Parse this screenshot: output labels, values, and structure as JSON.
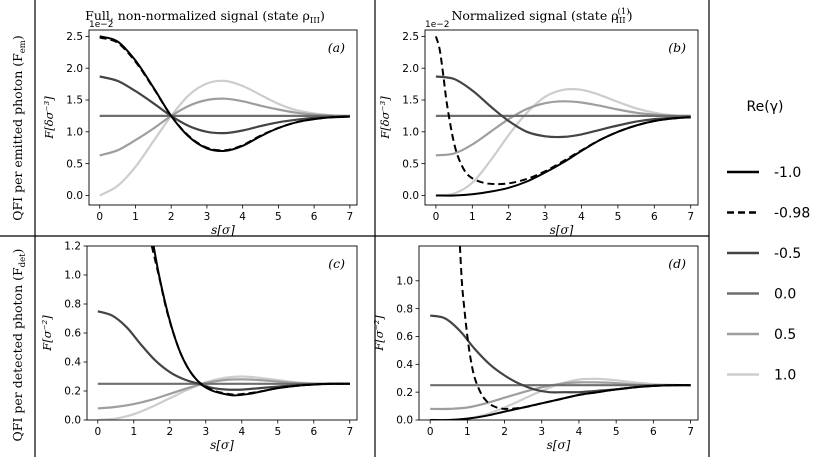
{
  "column_headers": [
    "Full, non-normalized signal (state ρ",
    "Normalized signal (state ρ"
  ],
  "column_header_subs": [
    "III",
    "III"
  ],
  "column_header_sups": [
    "",
    "(1)"
  ],
  "column_header_tail": ")",
  "row_headers": [
    "QFI per emitted photon (F",
    "QFI per detected photon (F"
  ],
  "row_header_subs": [
    "em",
    "det"
  ],
  "row_header_tail": ")",
  "legend": {
    "title": "Re(γ)",
    "entries": [
      {
        "label": "-1.0",
        "color": "#000000",
        "dash": false
      },
      {
        "label": "-0.98",
        "color": "#000000",
        "dash": true
      },
      {
        "label": "-0.5",
        "color": "#444444",
        "dash": false
      },
      {
        "label": "0.0",
        "color": "#6e6e6e",
        "dash": false
      },
      {
        "label": "0.5",
        "color": "#9e9e9e",
        "dash": false
      },
      {
        "label": "1.0",
        "color": "#cdcdcd",
        "dash": false
      }
    ]
  },
  "chart_data": [
    {
      "type": "line",
      "panel": "(a)",
      "xlabel": "s[σ]",
      "ylabel": "F[δσ⁻³]",
      "offset_text": "1e−2",
      "xlim": [
        -0.3,
        7.2
      ],
      "ylim": [
        -0.15,
        2.6
      ],
      "xticks": [
        "0",
        "1",
        "2",
        "3",
        "4",
        "5",
        "6",
        "7"
      ],
      "yticks": [
        "0.0",
        "0.5",
        "1.0",
        "1.5",
        "2.0",
        "2.5"
      ],
      "yticks_values": [
        0.0,
        0.5,
        1.0,
        1.5,
        2.0,
        2.5
      ],
      "series": [
        {
          "name": "-1.0",
          "x": [
            0,
            0.5,
            1,
            1.5,
            2,
            2.5,
            3,
            3.5,
            4,
            4.5,
            5,
            5.5,
            6,
            6.5,
            7
          ],
          "y": [
            2.5,
            2.42,
            2.12,
            1.7,
            1.25,
            0.92,
            0.74,
            0.7,
            0.78,
            0.93,
            1.06,
            1.15,
            1.2,
            1.23,
            1.24
          ]
        },
        {
          "name": "-0.98",
          "x": [
            0,
            0.5,
            1,
            1.5,
            2,
            2.5,
            3,
            3.5,
            4,
            4.5,
            5,
            5.5,
            6,
            6.5,
            7
          ],
          "y": [
            2.48,
            2.4,
            2.1,
            1.69,
            1.25,
            0.93,
            0.75,
            0.71,
            0.79,
            0.94,
            1.06,
            1.15,
            1.2,
            1.23,
            1.24
          ]
        },
        {
          "name": "-0.5",
          "x": [
            0,
            0.5,
            1,
            1.5,
            2,
            2.5,
            3,
            3.5,
            4,
            4.5,
            5,
            5.5,
            6,
            6.5,
            7
          ],
          "y": [
            1.87,
            1.8,
            1.64,
            1.45,
            1.25,
            1.09,
            1.0,
            0.98,
            1.02,
            1.09,
            1.15,
            1.19,
            1.22,
            1.23,
            1.24
          ]
        },
        {
          "name": "0.0",
          "x": [
            0,
            1,
            2,
            3,
            4,
            5,
            6,
            7
          ],
          "y": [
            1.25,
            1.25,
            1.25,
            1.25,
            1.25,
            1.25,
            1.25,
            1.25
          ]
        },
        {
          "name": "0.5",
          "x": [
            0,
            0.5,
            1,
            1.5,
            2,
            2.5,
            3,
            3.5,
            4,
            4.5,
            5,
            5.5,
            6,
            6.5,
            7
          ],
          "y": [
            0.63,
            0.71,
            0.87,
            1.05,
            1.25,
            1.41,
            1.5,
            1.52,
            1.48,
            1.41,
            1.35,
            1.3,
            1.27,
            1.25,
            1.24
          ]
        },
        {
          "name": "1.0",
          "x": [
            0,
            0.5,
            1,
            1.5,
            2,
            2.5,
            3,
            3.5,
            4,
            4.5,
            5,
            5.5,
            6,
            6.5,
            7
          ],
          "y": [
            0.0,
            0.15,
            0.45,
            0.85,
            1.25,
            1.58,
            1.76,
            1.8,
            1.72,
            1.58,
            1.44,
            1.34,
            1.29,
            1.26,
            1.24
          ]
        }
      ]
    },
    {
      "type": "line",
      "panel": "(b)",
      "xlabel": "s[σ]",
      "ylabel": "F[δσ⁻³]",
      "offset_text": "1e−2",
      "xlim": [
        -0.3,
        7.2
      ],
      "ylim": [
        -0.15,
        2.6
      ],
      "xticks": [
        "0",
        "1",
        "2",
        "3",
        "4",
        "5",
        "6",
        "7"
      ],
      "yticks": [
        "0.0",
        "0.5",
        "1.0",
        "1.5",
        "2.0",
        "2.5"
      ],
      "yticks_values": [
        0.0,
        0.5,
        1.0,
        1.5,
        2.0,
        2.5
      ],
      "series": [
        {
          "name": "-1.0",
          "x": [
            0,
            0.5,
            1,
            1.5,
            2,
            2.5,
            3,
            3.5,
            4,
            4.5,
            5,
            5.5,
            6,
            6.5,
            7
          ],
          "y": [
            0.0,
            0.0,
            0.02,
            0.06,
            0.12,
            0.22,
            0.36,
            0.52,
            0.7,
            0.87,
            1.0,
            1.1,
            1.17,
            1.21,
            1.23
          ]
        },
        {
          "name": "-0.98",
          "x": [
            0,
            0.1,
            0.2,
            0.3,
            0.45,
            0.6,
            0.8,
            1.0,
            1.3,
            1.6,
            2.0,
            2.5,
            3,
            3.5,
            4,
            4.5,
            5,
            5.5,
            6,
            6.5,
            7
          ],
          "y": [
            2.5,
            2.3,
            1.9,
            1.45,
            0.95,
            0.62,
            0.38,
            0.27,
            0.2,
            0.18,
            0.19,
            0.26,
            0.38,
            0.54,
            0.71,
            0.87,
            1.0,
            1.1,
            1.17,
            1.21,
            1.23
          ]
        },
        {
          "name": "-0.5",
          "x": [
            0,
            0.5,
            1,
            1.5,
            2,
            2.5,
            3,
            3.5,
            4,
            4.5,
            5,
            5.5,
            6,
            6.5,
            7
          ],
          "y": [
            1.87,
            1.83,
            1.65,
            1.4,
            1.17,
            1.0,
            0.93,
            0.92,
            0.96,
            1.03,
            1.1,
            1.16,
            1.2,
            1.22,
            1.23
          ]
        },
        {
          "name": "0.0",
          "x": [
            0,
            1,
            2,
            3,
            4,
            5,
            6,
            7
          ],
          "y": [
            1.25,
            1.25,
            1.25,
            1.25,
            1.25,
            1.25,
            1.25,
            1.25
          ]
        },
        {
          "name": "0.5",
          "x": [
            0,
            0.5,
            1,
            1.5,
            2,
            2.5,
            3,
            3.5,
            4,
            4.5,
            5,
            5.5,
            6,
            6.5,
            7
          ],
          "y": [
            0.63,
            0.66,
            0.8,
            1.0,
            1.2,
            1.36,
            1.45,
            1.48,
            1.46,
            1.41,
            1.35,
            1.3,
            1.27,
            1.25,
            1.24
          ]
        },
        {
          "name": "1.0",
          "x": [
            0,
            0.5,
            1,
            1.5,
            2,
            2.5,
            3,
            3.5,
            4,
            4.5,
            5,
            5.5,
            6,
            6.5,
            7
          ],
          "y": [
            0.0,
            0.03,
            0.2,
            0.55,
            0.95,
            1.3,
            1.55,
            1.66,
            1.66,
            1.58,
            1.47,
            1.37,
            1.3,
            1.26,
            1.24
          ]
        }
      ]
    },
    {
      "type": "line",
      "panel": "(c)",
      "xlabel": "s[σ]",
      "ylabel": "F[σ⁻²]",
      "xlim": [
        -0.3,
        7.2
      ],
      "ylim": [
        0.0,
        1.2
      ],
      "xticks": [
        "0",
        "1",
        "2",
        "3",
        "4",
        "5",
        "6",
        "7"
      ],
      "yticks": [
        "0.0",
        "0.2",
        "0.4",
        "0.6",
        "0.8",
        "1.0",
        "1.2"
      ],
      "yticks_values": [
        0.0,
        0.2,
        0.4,
        0.6,
        0.8,
        1.0,
        1.2
      ],
      "series": [
        {
          "name": "-1.0",
          "x": [
            1.55,
            1.7,
            1.9,
            2.1,
            2.3,
            2.5,
            2.7,
            2.9,
            3.2,
            3.5,
            3.8,
            4.2,
            4.6,
            5,
            5.5,
            6,
            6.5,
            7
          ],
          "y": [
            1.2,
            1.0,
            0.78,
            0.6,
            0.46,
            0.36,
            0.29,
            0.24,
            0.2,
            0.18,
            0.17,
            0.18,
            0.2,
            0.22,
            0.235,
            0.245,
            0.25,
            0.25
          ]
        },
        {
          "name": "-0.98",
          "x": [
            1.5,
            1.7,
            1.9,
            2.1,
            2.3,
            2.5,
            2.7,
            2.9,
            3.2,
            3.5,
            3.8,
            4.2,
            4.6,
            5,
            5.5,
            6,
            6.5,
            7
          ],
          "y": [
            1.2,
            0.99,
            0.77,
            0.6,
            0.46,
            0.36,
            0.29,
            0.245,
            0.205,
            0.185,
            0.175,
            0.185,
            0.2,
            0.22,
            0.235,
            0.245,
            0.25,
            0.25
          ]
        },
        {
          "name": "-0.5",
          "x": [
            0,
            0.4,
            0.8,
            1.2,
            1.6,
            2.0,
            2.4,
            2.8,
            3.2,
            3.6,
            4,
            4.5,
            5,
            5.5,
            6,
            6.5,
            7
          ],
          "y": [
            0.75,
            0.72,
            0.64,
            0.52,
            0.41,
            0.33,
            0.28,
            0.25,
            0.22,
            0.21,
            0.21,
            0.22,
            0.23,
            0.24,
            0.245,
            0.25,
            0.25
          ]
        },
        {
          "name": "0.0",
          "x": [
            0,
            1,
            2,
            3,
            4,
            5,
            6,
            7
          ],
          "y": [
            0.25,
            0.25,
            0.25,
            0.25,
            0.25,
            0.25,
            0.25,
            0.25
          ]
        },
        {
          "name": "0.5",
          "x": [
            0,
            0.5,
            1,
            1.5,
            2,
            2.5,
            3,
            3.5,
            4,
            4.5,
            5,
            5.5,
            6,
            6.5,
            7
          ],
          "y": [
            0.08,
            0.09,
            0.11,
            0.14,
            0.18,
            0.22,
            0.255,
            0.275,
            0.28,
            0.275,
            0.265,
            0.255,
            0.25,
            0.25,
            0.25
          ]
        },
        {
          "name": "1.0",
          "x": [
            0,
            0.5,
            1,
            1.5,
            2,
            2.5,
            3,
            3.5,
            4,
            4.5,
            5,
            5.5,
            6,
            6.5,
            7
          ],
          "y": [
            0.0,
            0.01,
            0.04,
            0.09,
            0.15,
            0.21,
            0.26,
            0.29,
            0.3,
            0.29,
            0.275,
            0.26,
            0.252,
            0.25,
            0.25
          ]
        }
      ]
    },
    {
      "type": "line",
      "panel": "(d)",
      "xlabel": "s[σ]",
      "ylabel": "F[σ⁻²]",
      "xlim": [
        -0.3,
        7.2
      ],
      "ylim": [
        0.0,
        1.25
      ],
      "xticks": [
        "0",
        "1",
        "2",
        "3",
        "4",
        "5",
        "6",
        "7"
      ],
      "yticks": [
        "0.0",
        "0.2",
        "0.4",
        "0.6",
        "0.8",
        "1.0"
      ],
      "yticks_values": [
        0.0,
        0.2,
        0.4,
        0.6,
        0.8,
        1.0
      ],
      "series": [
        {
          "name": "-1.0",
          "x": [
            0,
            0.5,
            1,
            1.5,
            2,
            2.5,
            3,
            3.5,
            4,
            4.5,
            5,
            5.5,
            6,
            6.5,
            7
          ],
          "y": [
            0.0,
            0.0,
            0.01,
            0.03,
            0.06,
            0.09,
            0.12,
            0.15,
            0.18,
            0.2,
            0.22,
            0.235,
            0.245,
            0.25,
            0.25
          ]
        },
        {
          "name": "-0.98",
          "x": [
            0.8,
            0.85,
            0.9,
            1.0,
            1.1,
            1.2,
            1.35,
            1.5,
            1.7,
            2.0,
            2.5,
            3,
            3.5,
            4,
            4.5,
            5,
            5.5,
            6,
            6.5,
            7
          ],
          "y": [
            1.25,
            1.0,
            0.85,
            0.6,
            0.42,
            0.3,
            0.2,
            0.14,
            0.1,
            0.08,
            0.09,
            0.12,
            0.15,
            0.18,
            0.2,
            0.22,
            0.235,
            0.245,
            0.25,
            0.25
          ]
        },
        {
          "name": "-0.5",
          "x": [
            0,
            0.4,
            0.8,
            1.2,
            1.6,
            2.0,
            2.4,
            2.8,
            3.2,
            3.6,
            4,
            4.5,
            5,
            5.5,
            6,
            6.5,
            7
          ],
          "y": [
            0.75,
            0.73,
            0.64,
            0.51,
            0.4,
            0.32,
            0.26,
            0.22,
            0.2,
            0.2,
            0.2,
            0.21,
            0.22,
            0.235,
            0.245,
            0.25,
            0.25
          ]
        },
        {
          "name": "0.0",
          "x": [
            0,
            1,
            2,
            3,
            4,
            5,
            6,
            7
          ],
          "y": [
            0.25,
            0.25,
            0.25,
            0.25,
            0.25,
            0.25,
            0.25,
            0.25
          ]
        },
        {
          "name": "0.5",
          "x": [
            0,
            0.5,
            1,
            1.5,
            2,
            2.5,
            3,
            3.5,
            4,
            4.5,
            5,
            5.5,
            6,
            6.5,
            7
          ],
          "y": [
            0.08,
            0.08,
            0.09,
            0.12,
            0.16,
            0.2,
            0.235,
            0.26,
            0.27,
            0.27,
            0.265,
            0.255,
            0.25,
            0.25,
            0.25
          ]
        },
        {
          "name": "1.0",
          "x": [
            0,
            0.5,
            1,
            1.5,
            2,
            2.5,
            3,
            3.5,
            4,
            4.5,
            5,
            5.5,
            6,
            6.5,
            7
          ],
          "y": [
            0.0,
            0.0,
            0.01,
            0.04,
            0.09,
            0.15,
            0.21,
            0.26,
            0.29,
            0.295,
            0.285,
            0.27,
            0.258,
            0.252,
            0.25
          ]
        }
      ]
    }
  ]
}
